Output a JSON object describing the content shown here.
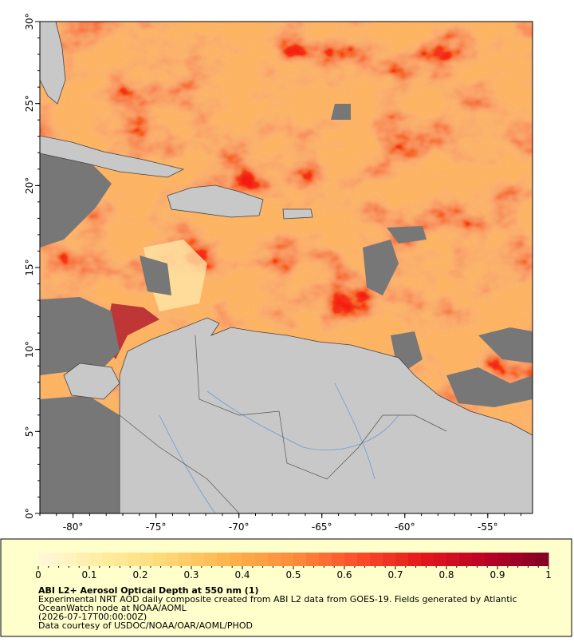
{
  "map": {
    "lonlim": [
      -82,
      -52.3
    ],
    "latlim": [
      0,
      30
    ],
    "lon_ticks": [
      {
        "value": -80,
        "label": "-80°"
      },
      {
        "value": -75,
        "label": "-75°"
      },
      {
        "value": -70,
        "label": "-70°"
      },
      {
        "value": -65,
        "label": "-65°"
      },
      {
        "value": -60,
        "label": "-60°"
      },
      {
        "value": -55,
        "label": "-55°"
      }
    ],
    "lat_ticks": [
      {
        "value": 0,
        "label": "0°"
      },
      {
        "value": 5,
        "label": "5°"
      },
      {
        "value": 10,
        "label": "10°"
      },
      {
        "value": 15,
        "label": "15°"
      },
      {
        "value": 20,
        "label": "20°"
      },
      {
        "value": 25,
        "label": "25°"
      },
      {
        "value": 30,
        "label": "30°"
      }
    ]
  },
  "colorbar": {
    "range": [
      0,
      1
    ],
    "ticks": [
      0,
      0.1,
      0.2,
      0.3,
      0.4,
      0.5,
      0.6,
      0.7,
      0.8,
      0.9,
      1
    ],
    "colors": [
      "#fff8dc",
      "#ffeda0",
      "#fed976",
      "#feb24c",
      "#fd8d3c",
      "#fc4e2a",
      "#e31a1c",
      "#bd0026",
      "#800026"
    ]
  },
  "caption": {
    "title": "ABI L2+ Aerosol Optical Depth at 550 nm (1)",
    "lines": [
      "Experimental NRT AOD daily composite created from ABI L2 data from GOES-19. Fields generated by Atlantic",
      "OceanWatch node at NOAA/AOML",
      "(2026-07-17T00:00:00Z)",
      "Data courtesy of USDOC/NOAA/OAR/AOML/PHOD"
    ]
  }
}
